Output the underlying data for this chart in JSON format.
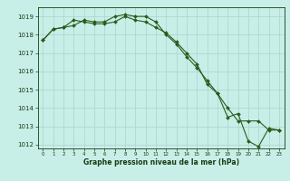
{
  "line1_x": [
    0,
    1,
    2,
    3,
    4,
    5,
    6,
    7,
    8,
    9,
    10,
    11,
    12,
    13,
    14,
    15,
    16,
    17,
    18,
    19,
    20,
    21,
    22,
    23
  ],
  "line1_y": [
    1017.7,
    1018.3,
    1018.4,
    1018.5,
    1018.8,
    1018.7,
    1018.7,
    1019.0,
    1019.1,
    1019.0,
    1019.0,
    1018.7,
    1018.0,
    1017.5,
    1016.8,
    1016.2,
    1015.5,
    1014.8,
    1014.0,
    1013.3,
    1013.3,
    1013.3,
    1012.8,
    1012.8
  ],
  "line2_x": [
    0,
    1,
    2,
    3,
    4,
    5,
    6,
    7,
    8,
    9,
    10,
    11,
    12,
    13,
    14,
    15,
    16,
    17,
    18,
    19,
    20,
    21,
    22,
    23
  ],
  "line2_y": [
    1017.7,
    1018.3,
    1018.4,
    1018.8,
    1018.7,
    1018.6,
    1018.6,
    1018.7,
    1019.0,
    1018.8,
    1018.7,
    1018.4,
    1018.1,
    1017.6,
    1017.0,
    1016.4,
    1015.3,
    1014.8,
    1013.5,
    1013.7,
    1012.2,
    1011.9,
    1012.9,
    1012.8
  ],
  "line_color": "#2d5a1b",
  "marker_color": "#2d5a1b",
  "bg_color": "#c8eee8",
  "grid_color": "#aed8d0",
  "text_color": "#1a3a10",
  "xlabel": "Graphe pression niveau de la mer (hPa)",
  "ylim": [
    1011.8,
    1019.5
  ],
  "xlim": [
    -0.5,
    23.5
  ],
  "yticks": [
    1012,
    1013,
    1014,
    1015,
    1016,
    1017,
    1018,
    1019
  ],
  "xticks": [
    0,
    1,
    2,
    3,
    4,
    5,
    6,
    7,
    8,
    9,
    10,
    11,
    12,
    13,
    14,
    15,
    16,
    17,
    18,
    19,
    20,
    21,
    22,
    23
  ]
}
